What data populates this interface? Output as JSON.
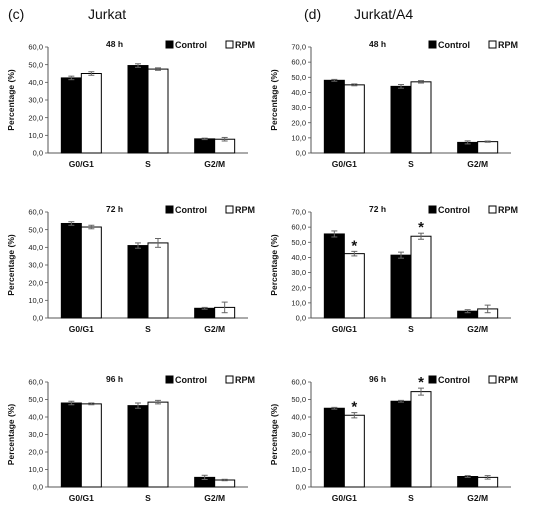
{
  "figure": {
    "panel_c_header": "(c)",
    "panel_c_title": "Jurkat",
    "panel_d_header": "(d)",
    "panel_d_title": "Jurkat/A4"
  },
  "colors": {
    "control": "#000000",
    "rpm": "#ffffff",
    "axis": "#555555"
  },
  "chart_data": [
    {
      "type": "bar",
      "panel": "c",
      "row": 0,
      "subtitle": "48 h",
      "categories": [
        "G0/G1",
        "S",
        "G2/M"
      ],
      "ylabel": "Percentage (%)",
      "yticks": [
        "0,0",
        "10,0",
        "20,0",
        "30,0",
        "40,0",
        "50,0",
        "60,0"
      ],
      "ylim": [
        0,
        60
      ],
      "legend": [
        "Control",
        "RPM"
      ],
      "series": [
        {
          "name": "Control",
          "values": [
            42.5,
            49.5,
            8.0
          ],
          "errors": [
            1.0,
            1.0,
            0.4
          ]
        },
        {
          "name": "RPM",
          "values": [
            45.0,
            47.5,
            7.8
          ],
          "errors": [
            1.0,
            0.7,
            1.0
          ]
        }
      ],
      "significant": []
    },
    {
      "type": "bar",
      "panel": "d",
      "row": 0,
      "subtitle": "48 h",
      "categories": [
        "G0/G1",
        "S",
        "G2/M"
      ],
      "ylabel": "Percentage (%)",
      "yticks": [
        "0,0",
        "10,0",
        "20,0",
        "30,0",
        "40,0",
        "50,0",
        "60,0",
        "70,0"
      ],
      "ylim": [
        0,
        70
      ],
      "legend": [
        "Control",
        "RPM"
      ],
      "series": [
        {
          "name": "Control",
          "values": [
            48.0,
            44.0,
            7.0
          ],
          "errors": [
            0.6,
            1.2,
            1.0
          ]
        },
        {
          "name": "RPM",
          "values": [
            45.0,
            47.0,
            7.5
          ],
          "errors": [
            0.6,
            0.8,
            0.4
          ]
        }
      ],
      "significant": []
    },
    {
      "type": "bar",
      "panel": "c",
      "row": 1,
      "subtitle": "72 h",
      "categories": [
        "G0/G1",
        "S",
        "G2/M"
      ],
      "ylabel": "Percentage (%)",
      "yticks": [
        "0,0",
        "10,0",
        "20,0",
        "30,0",
        "40,0",
        "50,0",
        "60,0"
      ],
      "ylim": [
        0,
        60
      ],
      "legend": [
        "Control",
        "RPM"
      ],
      "series": [
        {
          "name": "Control",
          "values": [
            53.5,
            41.0,
            5.5
          ],
          "errors": [
            1.0,
            1.5,
            0.5
          ]
        },
        {
          "name": "RPM",
          "values": [
            51.5,
            42.5,
            6.0
          ],
          "errors": [
            1.0,
            2.5,
            3.0
          ]
        }
      ],
      "significant": []
    },
    {
      "type": "bar",
      "panel": "d",
      "row": 1,
      "subtitle": "72 h",
      "categories": [
        "G0/G1",
        "S",
        "G2/M"
      ],
      "ylabel": "Percentage (%)",
      "yticks": [
        "0,0",
        "10,0",
        "20,0",
        "30,0",
        "40,0",
        "50,0",
        "60,0",
        "70,0"
      ],
      "ylim": [
        0,
        70
      ],
      "legend": [
        "Control",
        "RPM"
      ],
      "series": [
        {
          "name": "Control",
          "values": [
            55.5,
            41.5,
            4.5
          ],
          "errors": [
            2.0,
            2.0,
            1.0
          ]
        },
        {
          "name": "RPM",
          "values": [
            42.5,
            54.0,
            6.0
          ],
          "errors": [
            1.5,
            2.0,
            2.5
          ]
        }
      ],
      "significant": [
        {
          "series": 1,
          "category": 0,
          "label": "*"
        },
        {
          "series": 1,
          "category": 1,
          "label": "*"
        }
      ]
    },
    {
      "type": "bar",
      "panel": "c",
      "row": 2,
      "subtitle": "96  h",
      "categories": [
        "G0/G1",
        "S",
        "G2/M"
      ],
      "ylabel": "Percentage (%)",
      "yticks": [
        "0,0",
        "10,0",
        "20,0",
        "30,0",
        "40,0",
        "50,0",
        "60,0"
      ],
      "ylim": [
        0,
        60
      ],
      "legend": [
        "Control",
        "RPM"
      ],
      "series": [
        {
          "name": "Control",
          "values": [
            48.0,
            46.5,
            5.5
          ],
          "errors": [
            1.0,
            1.5,
            1.2
          ]
        },
        {
          "name": "RPM",
          "values": [
            47.5,
            48.5,
            4.0
          ],
          "errors": [
            0.5,
            1.0,
            0.4
          ]
        }
      ],
      "significant": []
    },
    {
      "type": "bar",
      "panel": "d",
      "row": 2,
      "subtitle": "96 h",
      "categories": [
        "G0/G1",
        "S",
        "G2/M"
      ],
      "ylabel": "Percentage (%)",
      "yticks": [
        "0,0",
        "10,0",
        "20,0",
        "30,0",
        "40,0",
        "50,0",
        "60,0"
      ],
      "ylim": [
        0,
        60
      ],
      "legend": [
        "Control",
        "RPM"
      ],
      "series": [
        {
          "name": "Control",
          "values": [
            45.0,
            49.0,
            6.0
          ],
          "errors": [
            0.5,
            0.5,
            0.5
          ]
        },
        {
          "name": "RPM",
          "values": [
            41.0,
            54.5,
            5.5
          ],
          "errors": [
            1.5,
            2.0,
            1.0
          ]
        }
      ],
      "significant": [
        {
          "series": 1,
          "category": 0,
          "label": "*"
        },
        {
          "series": 1,
          "category": 1,
          "label": "*"
        }
      ]
    }
  ]
}
